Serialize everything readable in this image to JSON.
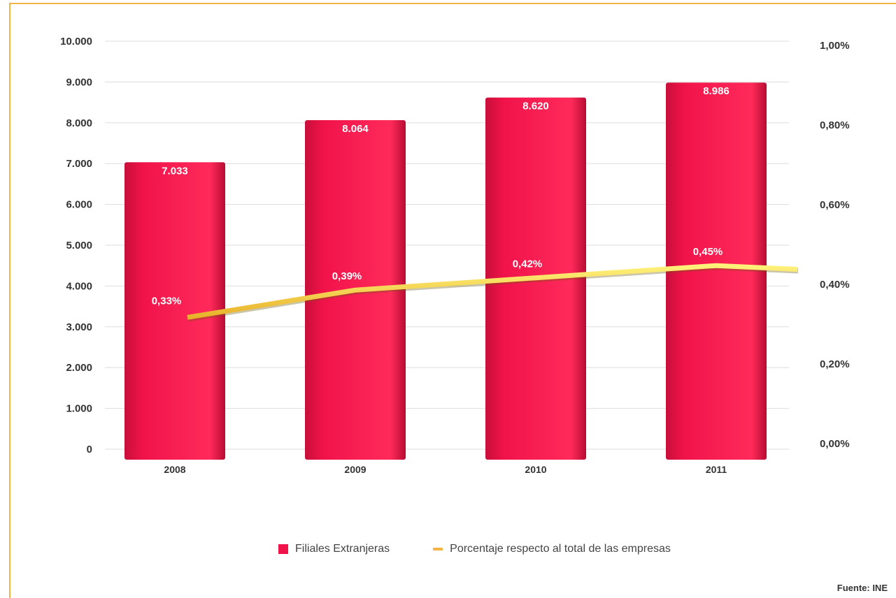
{
  "chart_data": {
    "type": "bar",
    "categories": [
      "2008",
      "2009",
      "2010",
      "2011"
    ],
    "series": [
      {
        "name": "Filiales Extranjeras",
        "type": "bar",
        "axis": "left",
        "values": [
          7033,
          8064,
          8620,
          8986
        ],
        "labels": [
          "7.033",
          "8.064",
          "8.620",
          "8.986"
        ],
        "color": "#f0134a"
      },
      {
        "name": "Porcentaje respecto al total de las empresas",
        "type": "line",
        "axis": "right",
        "values": [
          0.33,
          0.39,
          0.42,
          0.45
        ],
        "labels": [
          "0,33%",
          "0,39%",
          "0,42%",
          "0,45%"
        ],
        "color": "#f5d93a"
      }
    ],
    "y_left": {
      "ylim": [
        0,
        10000
      ],
      "ticks": [
        0,
        1000,
        2000,
        3000,
        4000,
        5000,
        6000,
        7000,
        8000,
        9000,
        10000
      ],
      "tick_labels": [
        "0",
        "1.000",
        "2.000",
        "3.000",
        "4.000",
        "5.000",
        "6.000",
        "7.000",
        "8.000",
        "9.000",
        "10.000"
      ]
    },
    "y_right": {
      "ylim": [
        0,
        1
      ],
      "ticks": [
        0,
        0.2,
        0.4,
        0.6,
        0.8,
        1.0
      ],
      "tick_labels": [
        "0,00%",
        "0,20%",
        "0,40%",
        "0,60%",
        "0,80%",
        "1,00%"
      ]
    },
    "grid": true,
    "legend_position": "bottom",
    "colors": {
      "frame": "#f5b544",
      "grid": "#dddddd",
      "text": "#333333"
    }
  },
  "legend": {
    "bar_label": "Filiales Extranjeras",
    "line_label": "Porcentaje respecto al total de las empresas"
  },
  "source": "Fuente: INE"
}
